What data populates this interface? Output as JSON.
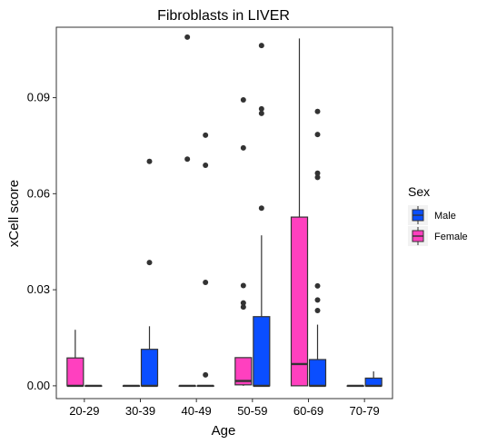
{
  "chart_data": {
    "type": "box",
    "title": "Fibroblasts in LIVER",
    "xlabel": "Age",
    "ylabel": "xCell score",
    "categories": [
      "20-29",
      "30-39",
      "40-49",
      "50-59",
      "60-69",
      "70-79"
    ],
    "ylim": [
      -0.004,
      0.112
    ],
    "yticks": [
      0.0,
      0.03,
      0.06,
      0.09
    ],
    "ytick_labels": [
      "0.00",
      "0.03",
      "0.06",
      "0.09"
    ],
    "grid": false,
    "legend": {
      "title": "Sex",
      "placement": "right",
      "entries": [
        {
          "name": "Male",
          "color": "#0A4EFF"
        },
        {
          "name": "Female",
          "color": "#FF40BF"
        }
      ]
    },
    "series": [
      {
        "name": "Female",
        "color": "#FF40BF",
        "boxes": [
          {
            "category": "20-29",
            "low": 0.0,
            "q1": 0.0,
            "median": 0.0,
            "q3": 0.0087,
            "high": 0.0175,
            "outliers": []
          },
          {
            "category": "30-39",
            "low": 0.0,
            "q1": 0.0,
            "median": 0.0,
            "q3": 0.0,
            "high": 0.0,
            "outliers": []
          },
          {
            "category": "40-49",
            "low": 0.0,
            "q1": 0.0,
            "median": 0.0,
            "q3": 0.0,
            "high": 0.0,
            "outliers": [
              0.0708,
              0.1089
            ]
          },
          {
            "category": "50-59",
            "low": 0.0,
            "q1": 0.0003,
            "median": 0.0015,
            "q3": 0.0088,
            "high": 0.0088,
            "outliers": [
              0.0246,
              0.0259,
              0.0313,
              0.0743,
              0.0893
            ]
          },
          {
            "category": "60-69",
            "low": 0.0,
            "q1": 0.0,
            "median": 0.0068,
            "q3": 0.0527,
            "high": 0.1085,
            "outliers": []
          },
          {
            "category": "70-79",
            "low": 0.0,
            "q1": 0.0,
            "median": 0.0,
            "q3": 0.0,
            "high": 0.0,
            "outliers": []
          }
        ]
      },
      {
        "name": "Male",
        "color": "#0A4EFF",
        "boxes": [
          {
            "category": "20-29",
            "low": 0.0,
            "q1": 0.0,
            "median": 0.0,
            "q3": 0.0,
            "high": 0.0,
            "outliers": []
          },
          {
            "category": "30-39",
            "low": 0.0,
            "q1": 0.0,
            "median": 0.0,
            "q3": 0.0114,
            "high": 0.0186,
            "outliers": [
              0.0385,
              0.0701
            ]
          },
          {
            "category": "40-49",
            "low": 0.0,
            "q1": 0.0,
            "median": 0.0,
            "q3": 0.0,
            "high": 0.0,
            "outliers": [
              0.0034,
              0.0323,
              0.0689,
              0.0783
            ]
          },
          {
            "category": "50-59",
            "low": 0.0,
            "q1": 0.0,
            "median": 0.0,
            "q3": 0.0216,
            "high": 0.047,
            "outliers": [
              0.0555,
              0.0851,
              0.0865,
              0.1063
            ]
          },
          {
            "category": "60-69",
            "low": 0.0,
            "q1": 0.0,
            "median": 0.0,
            "q3": 0.0082,
            "high": 0.0191,
            "outliers": [
              0.0235,
              0.0268,
              0.0312,
              0.0651,
              0.0664,
              0.0785,
              0.0857
            ]
          },
          {
            "category": "70-79",
            "low": 0.0,
            "q1": 0.0,
            "median": 0.0,
            "q3": 0.0024,
            "high": 0.0045,
            "outliers": []
          }
        ]
      }
    ]
  }
}
